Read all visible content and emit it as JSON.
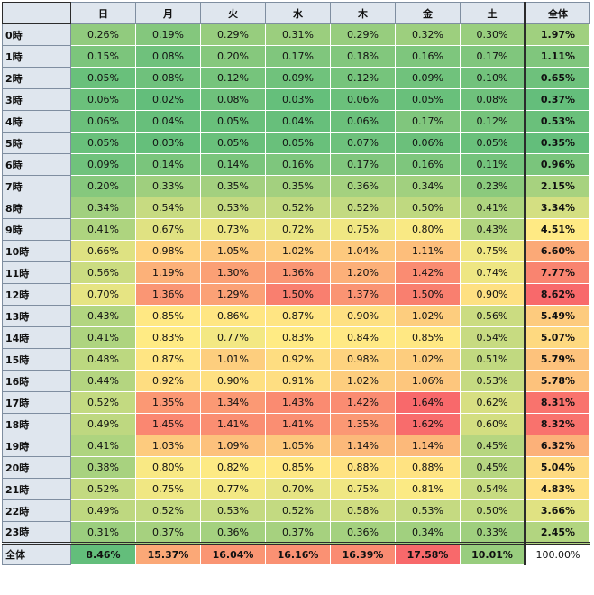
{
  "chart_data": {
    "type": "heatmap",
    "corner_label": "",
    "columns": [
      "日",
      "月",
      "火",
      "水",
      "木",
      "金",
      "土"
    ],
    "total_label": "全体",
    "rows": [
      {
        "label": "0時",
        "values": [
          "0.26%",
          "0.19%",
          "0.29%",
          "0.31%",
          "0.29%",
          "0.32%",
          "0.30%"
        ],
        "total": "1.97%"
      },
      {
        "label": "1時",
        "values": [
          "0.15%",
          "0.08%",
          "0.20%",
          "0.17%",
          "0.18%",
          "0.16%",
          "0.17%"
        ],
        "total": "1.11%"
      },
      {
        "label": "2時",
        "values": [
          "0.05%",
          "0.08%",
          "0.12%",
          "0.09%",
          "0.12%",
          "0.09%",
          "0.10%"
        ],
        "total": "0.65%"
      },
      {
        "label": "3時",
        "values": [
          "0.06%",
          "0.02%",
          "0.08%",
          "0.03%",
          "0.06%",
          "0.05%",
          "0.08%"
        ],
        "total": "0.37%"
      },
      {
        "label": "4時",
        "values": [
          "0.06%",
          "0.04%",
          "0.05%",
          "0.04%",
          "0.06%",
          "0.17%",
          "0.12%"
        ],
        "total": "0.53%"
      },
      {
        "label": "5時",
        "values": [
          "0.05%",
          "0.03%",
          "0.05%",
          "0.05%",
          "0.07%",
          "0.06%",
          "0.05%"
        ],
        "total": "0.35%"
      },
      {
        "label": "6時",
        "values": [
          "0.09%",
          "0.14%",
          "0.14%",
          "0.16%",
          "0.17%",
          "0.16%",
          "0.11%"
        ],
        "total": "0.96%"
      },
      {
        "label": "7時",
        "values": [
          "0.20%",
          "0.33%",
          "0.35%",
          "0.35%",
          "0.36%",
          "0.34%",
          "0.23%"
        ],
        "total": "2.15%"
      },
      {
        "label": "8時",
        "values": [
          "0.34%",
          "0.54%",
          "0.53%",
          "0.52%",
          "0.52%",
          "0.50%",
          "0.41%"
        ],
        "total": "3.34%"
      },
      {
        "label": "9時",
        "values": [
          "0.41%",
          "0.67%",
          "0.73%",
          "0.72%",
          "0.75%",
          "0.80%",
          "0.43%"
        ],
        "total": "4.51%"
      },
      {
        "label": "10時",
        "values": [
          "0.66%",
          "0.98%",
          "1.05%",
          "1.02%",
          "1.04%",
          "1.11%",
          "0.75%"
        ],
        "total": "6.60%"
      },
      {
        "label": "11時",
        "values": [
          "0.56%",
          "1.19%",
          "1.30%",
          "1.36%",
          "1.20%",
          "1.42%",
          "0.74%"
        ],
        "total": "7.77%"
      },
      {
        "label": "12時",
        "values": [
          "0.70%",
          "1.36%",
          "1.29%",
          "1.50%",
          "1.37%",
          "1.50%",
          "0.90%"
        ],
        "total": "8.62%"
      },
      {
        "label": "13時",
        "values": [
          "0.43%",
          "0.85%",
          "0.86%",
          "0.87%",
          "0.90%",
          "1.02%",
          "0.56%"
        ],
        "total": "5.49%"
      },
      {
        "label": "14時",
        "values": [
          "0.41%",
          "0.83%",
          "0.77%",
          "0.83%",
          "0.84%",
          "0.85%",
          "0.54%"
        ],
        "total": "5.07%"
      },
      {
        "label": "15時",
        "values": [
          "0.48%",
          "0.87%",
          "1.01%",
          "0.92%",
          "0.98%",
          "1.02%",
          "0.51%"
        ],
        "total": "5.79%"
      },
      {
        "label": "16時",
        "values": [
          "0.44%",
          "0.92%",
          "0.90%",
          "0.91%",
          "1.02%",
          "1.06%",
          "0.53%"
        ],
        "total": "5.78%"
      },
      {
        "label": "17時",
        "values": [
          "0.52%",
          "1.35%",
          "1.34%",
          "1.43%",
          "1.42%",
          "1.64%",
          "0.62%"
        ],
        "total": "8.31%"
      },
      {
        "label": "18時",
        "values": [
          "0.49%",
          "1.45%",
          "1.41%",
          "1.41%",
          "1.35%",
          "1.62%",
          "0.60%"
        ],
        "total": "8.32%"
      },
      {
        "label": "19時",
        "values": [
          "0.41%",
          "1.03%",
          "1.09%",
          "1.05%",
          "1.14%",
          "1.14%",
          "0.45%"
        ],
        "total": "6.32%"
      },
      {
        "label": "20時",
        "values": [
          "0.38%",
          "0.80%",
          "0.82%",
          "0.85%",
          "0.88%",
          "0.88%",
          "0.45%"
        ],
        "total": "5.04%"
      },
      {
        "label": "21時",
        "values": [
          "0.52%",
          "0.75%",
          "0.77%",
          "0.70%",
          "0.75%",
          "0.81%",
          "0.54%"
        ],
        "total": "4.83%"
      },
      {
        "label": "22時",
        "values": [
          "0.49%",
          "0.52%",
          "0.53%",
          "0.52%",
          "0.58%",
          "0.53%",
          "0.50%"
        ],
        "total": "3.66%"
      },
      {
        "label": "23時",
        "values": [
          "0.31%",
          "0.37%",
          "0.36%",
          "0.37%",
          "0.36%",
          "0.34%",
          "0.33%"
        ],
        "total": "2.45%"
      }
    ],
    "grand_total": {
      "label": "全体",
      "values": [
        "8.46%",
        "15.37%",
        "16.04%",
        "16.16%",
        "16.39%",
        "17.58%",
        "10.01%"
      ],
      "total": "100.00%"
    },
    "color_scale": {
      "low": "#63be7b",
      "mid": "#ffeb84",
      "high": "#f8696b"
    }
  }
}
